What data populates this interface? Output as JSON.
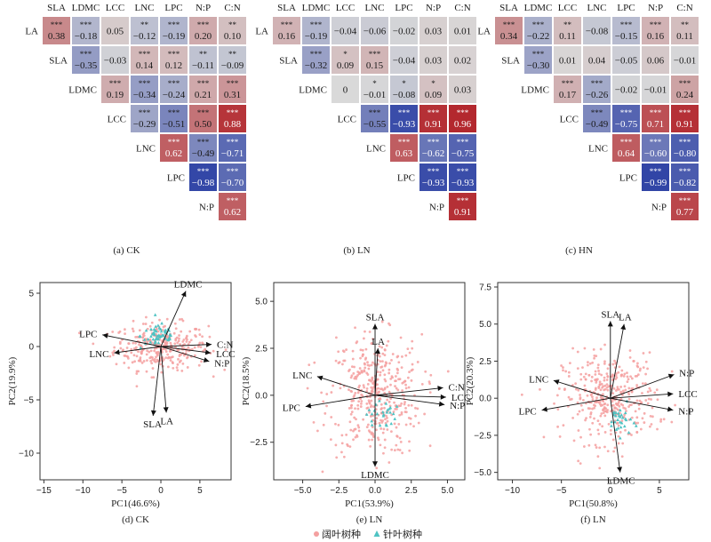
{
  "legend": {
    "broadleaf": "阔叶树种",
    "conifer": "针叶树种",
    "broadleaf_color": "#f4a0a0",
    "conifer_color": "#4fc3c3"
  },
  "colors": {
    "pos_strong": "#b22228",
    "neg_strong": "#3c4fa6",
    "neutral": "#d9d9d9"
  },
  "chart_data": [
    {
      "type": "heatmap",
      "caption": "(a) CK",
      "col_labels": [
        "SLA",
        "LDMC",
        "LCC",
        "LNC",
        "LPC",
        "N:P",
        "C:N"
      ],
      "row_labels": [
        "LA",
        "SLA",
        "LDMC",
        "LCC",
        "LNC",
        "LPC",
        "N:P"
      ],
      "cells": [
        [
          {
            "v": "0.38",
            "s": "***"
          },
          {
            "v": "−0.18",
            "s": "***"
          },
          {
            "v": "0.05",
            "s": ""
          },
          {
            "v": "−0.12",
            "s": "**"
          },
          {
            "v": "−0.19",
            "s": "***"
          },
          {
            "v": "0.20",
            "s": "***"
          },
          {
            "v": "0.10",
            "s": "**"
          }
        ],
        [
          null,
          {
            "v": "−0.35",
            "s": "***"
          },
          {
            "v": "−0.03",
            "s": ""
          },
          {
            "v": "0.14",
            "s": "***"
          },
          {
            "v": "0.12",
            "s": "***"
          },
          {
            "v": "−0.11",
            "s": "**"
          },
          {
            "v": "−0.09",
            "s": "**"
          }
        ],
        [
          null,
          null,
          {
            "v": "0.19",
            "s": "***"
          },
          {
            "v": "−0.34",
            "s": "***"
          },
          {
            "v": "−0.24",
            "s": "***"
          },
          {
            "v": "0.21",
            "s": "***"
          },
          {
            "v": "0.31",
            "s": "***"
          }
        ],
        [
          null,
          null,
          null,
          {
            "v": "−0.29",
            "s": "***"
          },
          {
            "v": "−0.51",
            "s": "***"
          },
          {
            "v": "0.50",
            "s": "***"
          },
          {
            "v": "0.88",
            "s": "***"
          }
        ],
        [
          null,
          null,
          null,
          null,
          {
            "v": "0.62",
            "s": "***"
          },
          {
            "v": "−0.49",
            "s": "***"
          },
          {
            "v": "−0.71",
            "s": "***"
          }
        ],
        [
          null,
          null,
          null,
          null,
          null,
          {
            "v": "−0.98",
            "s": "***"
          },
          {
            "v": "−0.70",
            "s": "***"
          }
        ],
        [
          null,
          null,
          null,
          null,
          null,
          null,
          {
            "v": "0.62",
            "s": "***"
          }
        ]
      ]
    },
    {
      "type": "heatmap",
      "caption": "(b) LN",
      "col_labels": [
        "SLA",
        "LDMC",
        "LCC",
        "LNC",
        "LPC",
        "N:P",
        "C:N"
      ],
      "row_labels": [
        "LA",
        "SLA",
        "LDMC",
        "LCC",
        "LNC",
        "LPC",
        "N:P"
      ],
      "cells": [
        [
          {
            "v": "0.16",
            "s": "***"
          },
          {
            "v": "−0.19",
            "s": "***"
          },
          {
            "v": "−0.04",
            "s": ""
          },
          {
            "v": "−0.06",
            "s": ""
          },
          {
            "v": "−0.02",
            "s": ""
          },
          {
            "v": "0.03",
            "s": ""
          },
          {
            "v": "0.01",
            "s": ""
          }
        ],
        [
          null,
          {
            "v": "−0.32",
            "s": "***"
          },
          {
            "v": "0.09",
            "s": "*"
          },
          {
            "v": "0.15",
            "s": "***"
          },
          {
            "v": "−0.04",
            "s": ""
          },
          {
            "v": "0.03",
            "s": ""
          },
          {
            "v": "0.02",
            "s": ""
          }
        ],
        [
          null,
          null,
          {
            "v": "0",
            "s": ""
          },
          {
            "v": "−0.01",
            "s": "*"
          },
          {
            "v": "−0.08",
            "s": "*"
          },
          {
            "v": "0.09",
            "s": "*"
          },
          {
            "v": "0.03",
            "s": ""
          }
        ],
        [
          null,
          null,
          null,
          {
            "v": "−0.55",
            "s": "***"
          },
          {
            "v": "−0.93",
            "s": "***"
          },
          {
            "v": "0.91",
            "s": "***"
          },
          {
            "v": "0.96",
            "s": "***"
          }
        ],
        [
          null,
          null,
          null,
          null,
          {
            "v": "0.63",
            "s": "***"
          },
          {
            "v": "−0.62",
            "s": "***"
          },
          {
            "v": "−0.75",
            "s": "***"
          }
        ],
        [
          null,
          null,
          null,
          null,
          null,
          {
            "v": "−0.93",
            "s": "***"
          },
          {
            "v": "−0.93",
            "s": "***"
          }
        ],
        [
          null,
          null,
          null,
          null,
          null,
          null,
          {
            "v": "0.91",
            "s": "***"
          }
        ]
      ]
    },
    {
      "type": "heatmap",
      "caption": "(c) HN",
      "col_labels": [
        "SLA",
        "LDMC",
        "LCC",
        "LNC",
        "LPC",
        "N:P",
        "C:N"
      ],
      "row_labels": [
        "LA",
        "SLA",
        "LDMC",
        "LCC",
        "LNC",
        "LPC",
        "N:P"
      ],
      "cells": [
        [
          {
            "v": "0.34",
            "s": "***"
          },
          {
            "v": "−0.22",
            "s": "***"
          },
          {
            "v": "0.11",
            "s": "**"
          },
          {
            "v": "−0.08",
            "s": ""
          },
          {
            "v": "−0.15",
            "s": "***"
          },
          {
            "v": "0.16",
            "s": "***"
          },
          {
            "v": "0.11",
            "s": "**"
          }
        ],
        [
          null,
          {
            "v": "−0.30",
            "s": "***"
          },
          {
            "v": "0.01",
            "s": ""
          },
          {
            "v": "0.04",
            "s": ""
          },
          {
            "v": "−0.05",
            "s": ""
          },
          {
            "v": "0.06",
            "s": ""
          },
          {
            "v": "−0.01",
            "s": ""
          }
        ],
        [
          null,
          null,
          {
            "v": "0.17",
            "s": "***"
          },
          {
            "v": "−0.26",
            "s": "***"
          },
          {
            "v": "−0.02",
            "s": ""
          },
          {
            "v": "−0.01",
            "s": ""
          },
          {
            "v": "0.24",
            "s": "***"
          }
        ],
        [
          null,
          null,
          null,
          {
            "v": "−0.49",
            "s": "***"
          },
          {
            "v": "−0.75",
            "s": "***"
          },
          {
            "v": "0.71",
            "s": "***"
          },
          {
            "v": "0.91",
            "s": "***"
          }
        ],
        [
          null,
          null,
          null,
          null,
          {
            "v": "0.64",
            "s": "***"
          },
          {
            "v": "−0.60",
            "s": "***"
          },
          {
            "v": "−0.80",
            "s": "***"
          }
        ],
        [
          null,
          null,
          null,
          null,
          null,
          {
            "v": "−0.99",
            "s": "***"
          },
          {
            "v": "−0.82",
            "s": "***"
          }
        ],
        [
          null,
          null,
          null,
          null,
          null,
          null,
          {
            "v": "0.77",
            "s": "***"
          }
        ]
      ]
    },
    {
      "type": "scatter",
      "caption": "(d) CK",
      "xlabel": "PC1(46.6%)",
      "ylabel": "PC2(19.9%)",
      "xlim": [
        -15.5,
        9
      ],
      "ylim": [
        -12.5,
        6
      ],
      "xticks": [
        -15,
        -10,
        -5,
        0,
        5
      ],
      "yticks": [
        5,
        0,
        -5,
        -10
      ],
      "vectors": [
        {
          "name": "LDMC",
          "x": 3.2,
          "y": 5.2
        },
        {
          "name": "LPC",
          "x": -7.5,
          "y": 1.1
        },
        {
          "name": "LNC",
          "x": -6.0,
          "y": -0.6
        },
        {
          "name": "C:N",
          "x": 6.5,
          "y": 0.2
        },
        {
          "name": "LCC",
          "x": 6.4,
          "y": -0.6
        },
        {
          "name": "N:P",
          "x": 6.2,
          "y": -1.4
        },
        {
          "name": "SLA",
          "x": -1.0,
          "y": -6.5
        },
        {
          "name": "LA",
          "x": 0.7,
          "y": -6.2
        }
      ],
      "cloud": {
        "cx": 0,
        "cy": 0,
        "sx": 3.0,
        "sy": 1.1,
        "n": 320,
        "cx_c": -0.2,
        "cy_c": 1.0,
        "sx_c": 1.2,
        "sy_c": 0.6,
        "n_c": 55
      }
    },
    {
      "type": "scatter",
      "caption": "(e) LN",
      "xlabel": "PC1(53.9%)",
      "ylabel": "PC2(18.5%)",
      "xlim": [
        -7,
        6.2
      ],
      "ylim": [
        -4.5,
        6
      ],
      "xticks": [
        -5.0,
        -2.5,
        0.0,
        2.5,
        5.0
      ],
      "yticks": [
        5.0,
        2.5,
        0.0,
        -2.5
      ],
      "vectors": [
        {
          "name": "SLA",
          "x": 0.0,
          "y": 3.8
        },
        {
          "name": "LA",
          "x": 0.2,
          "y": 2.5
        },
        {
          "name": "LNC",
          "x": -4.0,
          "y": 1.0
        },
        {
          "name": "LPC",
          "x": -4.8,
          "y": -0.6
        },
        {
          "name": "C:N",
          "x": 4.7,
          "y": 0.4
        },
        {
          "name": "LCC",
          "x": 4.9,
          "y": -0.1
        },
        {
          "name": "N:P",
          "x": 4.8,
          "y": -0.5
        },
        {
          "name": "LDMC",
          "x": 0.0,
          "y": -3.8
        }
      ],
      "cloud": {
        "cx": 0,
        "cy": 0,
        "sx": 1.6,
        "sy": 1.6,
        "n": 420,
        "cx_c": 0.4,
        "cy_c": -1.0,
        "sx_c": 0.5,
        "sy_c": 0.4,
        "n_c": 25
      }
    },
    {
      "type": "scatter",
      "caption": "(f) LN",
      "xlabel": "PC1(50.8%)",
      "ylabel": "PC2(20.3%)",
      "xlim": [
        -11.5,
        8
      ],
      "ylim": [
        -5.5,
        7.8
      ],
      "xticks": [
        -10,
        -5,
        0,
        5
      ],
      "yticks": [
        7.5,
        5.0,
        2.5,
        0.0,
        -2.5,
        -5.0
      ],
      "vectors": [
        {
          "name": "SLA",
          "x": 0.0,
          "y": 5.2
        },
        {
          "name": "LA",
          "x": 1.4,
          "y": 5.0
        },
        {
          "name": "LNC",
          "x": -5.8,
          "y": 1.2
        },
        {
          "name": "LPC",
          "x": -7.0,
          "y": -0.8
        },
        {
          "name": "N:P",
          "x": 6.5,
          "y": 1.6
        },
        {
          "name": "LCC",
          "x": 6.4,
          "y": 0.3
        },
        {
          "name": "N:P",
          "x": 6.4,
          "y": -0.8
        },
        {
          "name": "LDMC",
          "x": 1.0,
          "y": -5.0
        }
      ],
      "cloud": {
        "cx": 0,
        "cy": 0,
        "sx": 2.4,
        "sy": 1.5,
        "n": 380,
        "cx_c": 1.0,
        "cy_c": -1.5,
        "sx_c": 0.6,
        "sy_c": 0.5,
        "n_c": 30
      }
    }
  ]
}
